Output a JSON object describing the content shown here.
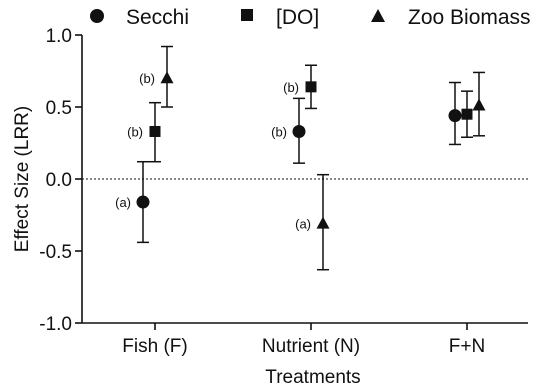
{
  "chart_data": {
    "type": "scatter",
    "xlabel": "Treatments",
    "ylabel": "Effect Size (LRR)",
    "ylim": [
      -1.0,
      1.0
    ],
    "yticks": [
      "1.0",
      "0.5",
      "0.0",
      "-0.5",
      "-1.0"
    ],
    "ytick_values": [
      1.0,
      0.5,
      0.0,
      -0.5,
      -1.0
    ],
    "categories": [
      "Fish (F)",
      "Nutrient (N)",
      "F+N"
    ],
    "reference_line": 0.0,
    "legend": {
      "placement": "top",
      "entries": [
        {
          "name": "Secchi",
          "marker": "circle"
        },
        {
          "name": "[DO]",
          "marker": "square"
        },
        {
          "name": "Zoo Biomass",
          "marker": "triangle"
        }
      ]
    },
    "series": [
      {
        "name": "Secchi",
        "marker": "circle",
        "values": [
          -0.16,
          0.33,
          0.44
        ],
        "lower": [
          -0.44,
          0.11,
          0.24
        ],
        "upper": [
          0.12,
          0.56,
          0.67
        ],
        "labels": [
          "(a)",
          "(b)",
          ""
        ]
      },
      {
        "name": "[DO]",
        "marker": "square",
        "values": [
          0.33,
          0.64,
          0.45
        ],
        "lower": [
          0.12,
          0.49,
          0.29
        ],
        "upper": [
          0.53,
          0.79,
          0.61
        ],
        "labels": [
          "(b)",
          "(b)",
          ""
        ]
      },
      {
        "name": "Zoo Biomass",
        "marker": "triangle",
        "values": [
          0.7,
          -0.31,
          0.51
        ],
        "lower": [
          0.5,
          -0.63,
          0.3
        ],
        "upper": [
          0.92,
          0.03,
          0.74
        ],
        "labels": [
          "(b)",
          "(a)",
          ""
        ]
      }
    ],
    "colors": {
      "marks": "#111111",
      "axis": "#111111"
    }
  }
}
